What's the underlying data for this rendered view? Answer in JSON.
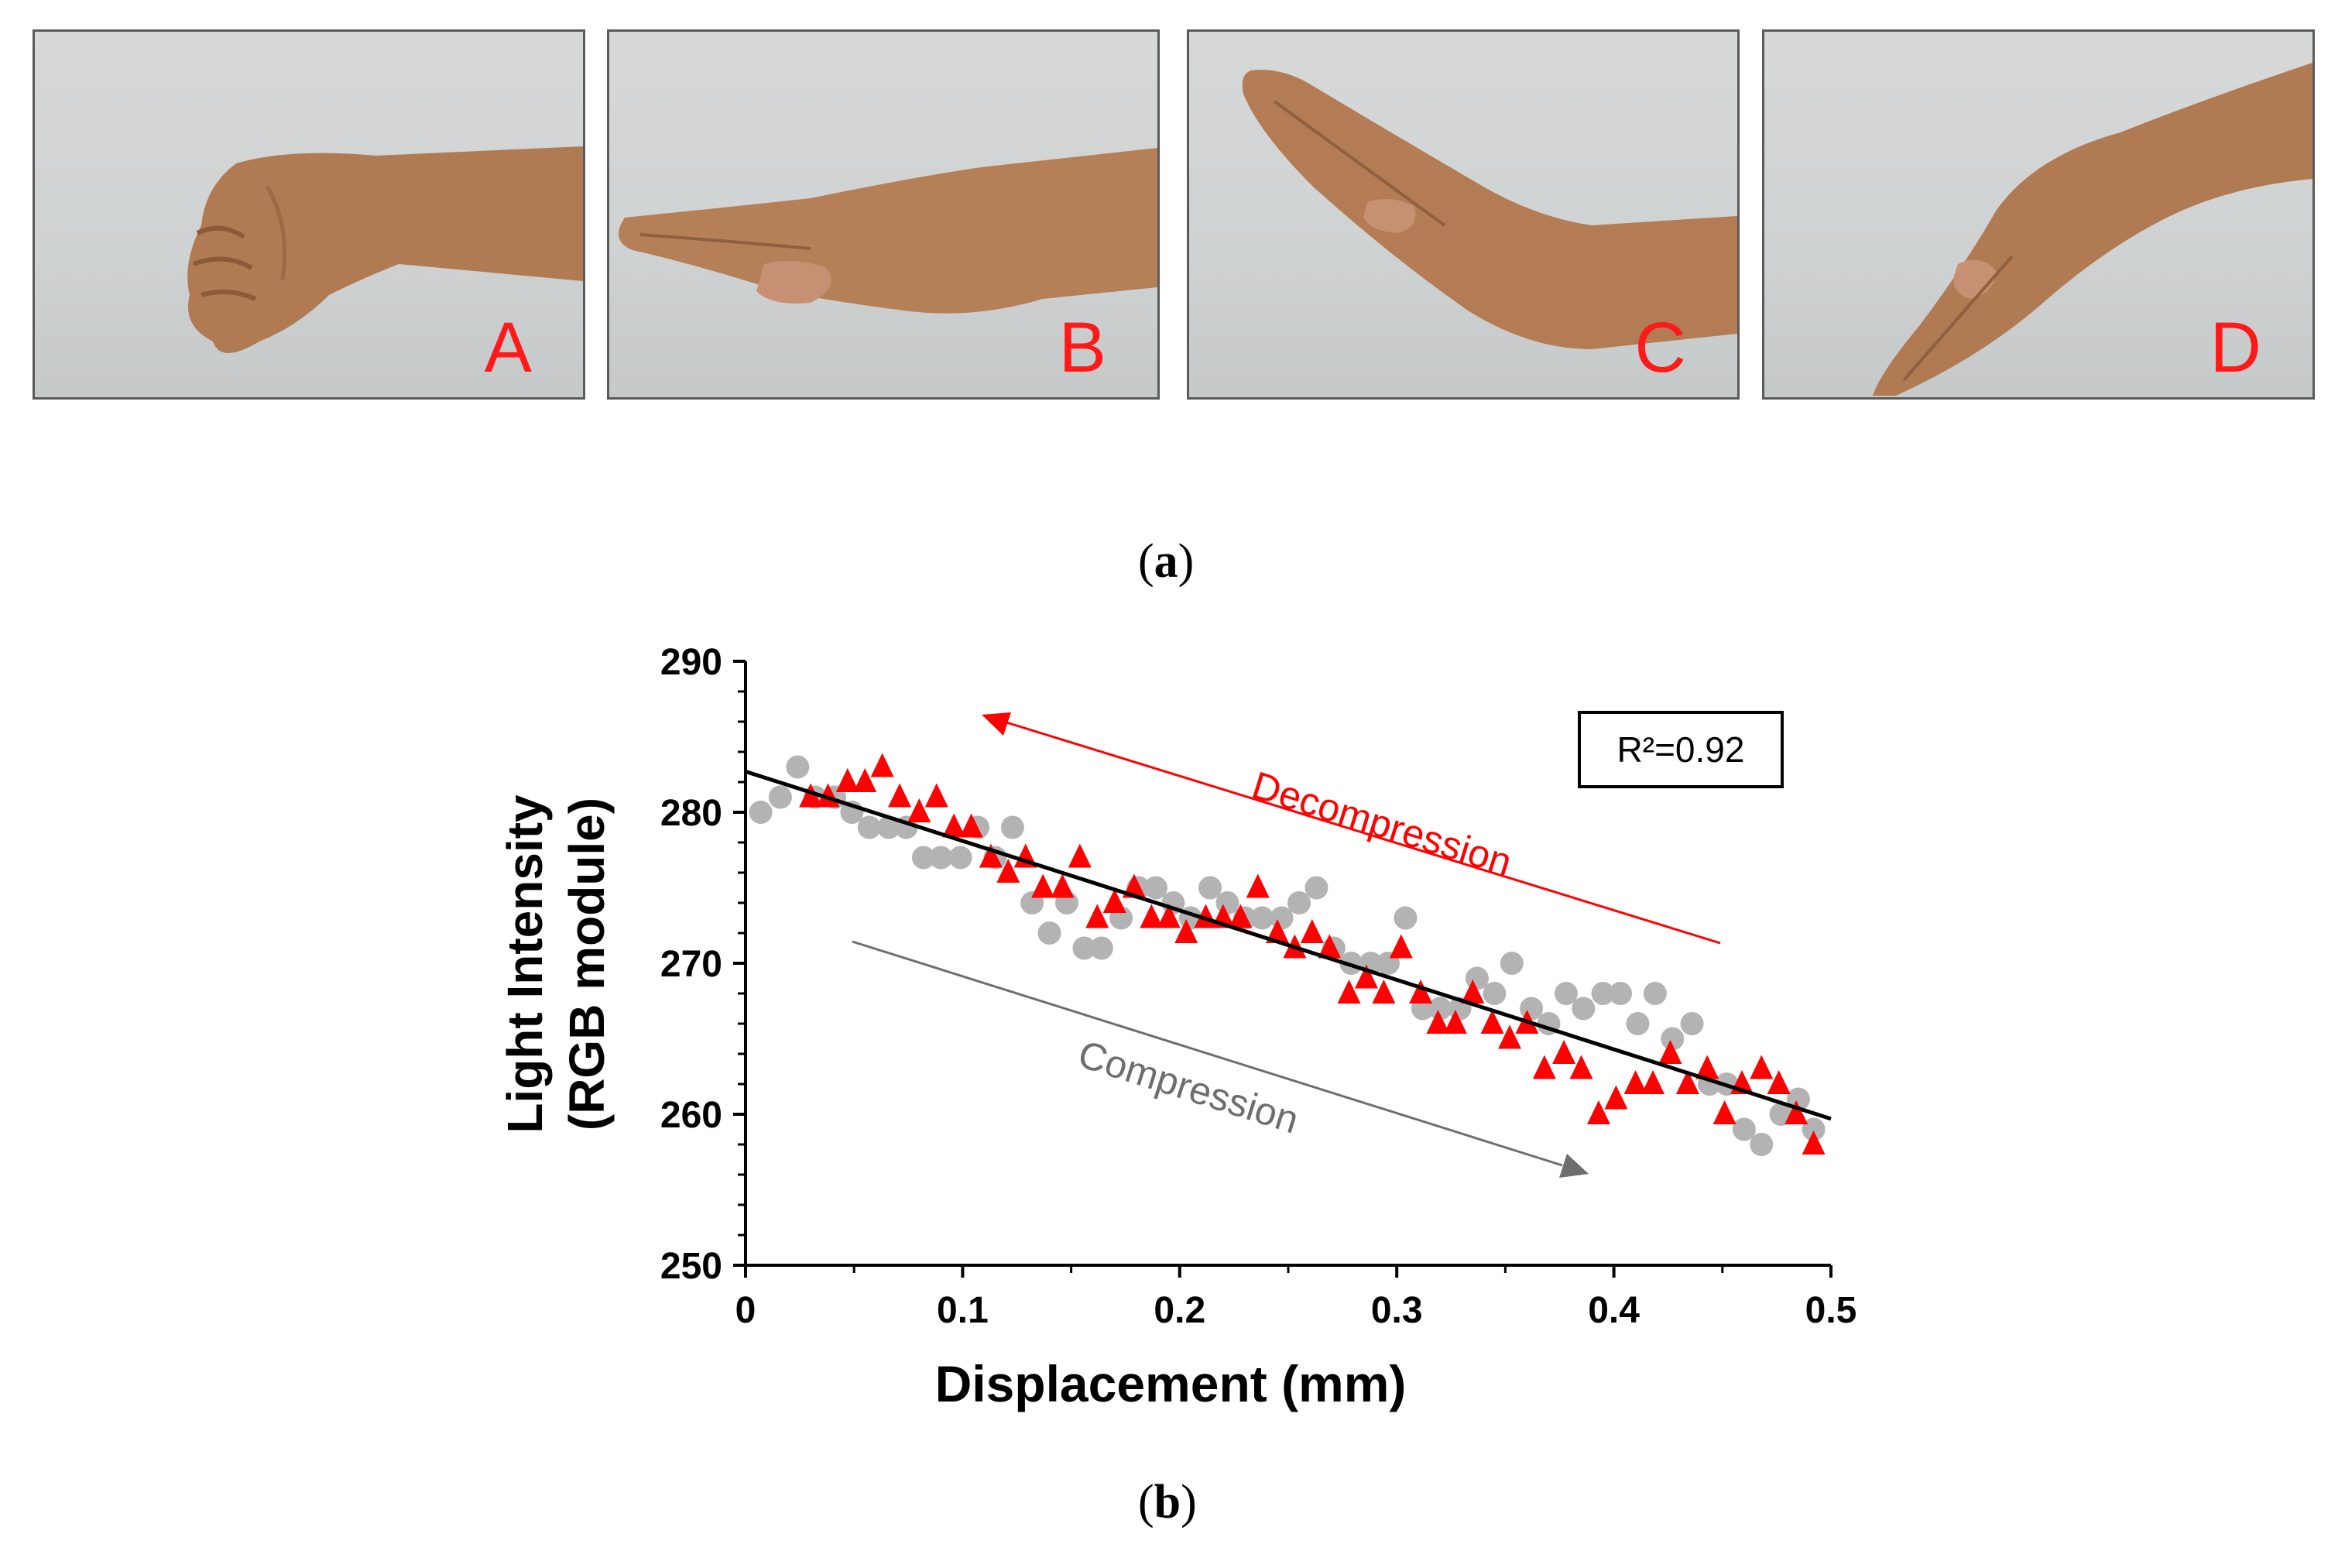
{
  "panel_a": {
    "photos": [
      {
        "label": "A",
        "pose": "fist"
      },
      {
        "label": "B",
        "pose": "flat-hand"
      },
      {
        "label": "C",
        "pose": "hand-extension"
      },
      {
        "label": "D",
        "pose": "hand-flexion"
      }
    ],
    "caption_open": "(",
    "caption_letter": "a",
    "caption_close": ")"
  },
  "panel_b": {
    "caption_open": "(",
    "caption_letter": "b",
    "caption_close": ")"
  },
  "colors": {
    "compression": "#b3b3b3",
    "decompression": "#ff0000",
    "trendline": "#000000",
    "photo_label": "#ff1a1a"
  },
  "chart_data": {
    "type": "scatter",
    "xlabel": "Displacement (mm)",
    "ylabel_line1": "Light Intensity",
    "ylabel_line2": "(RGB module)",
    "xlim": [
      0,
      0.5
    ],
    "ylim": [
      250,
      290
    ],
    "xticks": [
      0,
      0.1,
      0.2,
      0.3,
      0.4,
      0.5
    ],
    "xtick_labels": [
      "0",
      "0.1",
      "0.2",
      "0.3",
      "0.4",
      "0.5"
    ],
    "yticks": [
      250,
      260,
      270,
      280,
      290
    ],
    "ytick_labels": [
      "250",
      "260",
      "270",
      "280",
      "290"
    ],
    "legend": "none",
    "annotation_r2": "R²=0.92",
    "arrow_decompression_label": "Decompression",
    "arrow_compression_label": "Compression",
    "trendline": {
      "x": [
        0,
        0.5
      ],
      "y": [
        282.7,
        259.7
      ]
    },
    "series": [
      {
        "name": "Compression",
        "marker": "circle",
        "x": [
          0.007,
          0.016,
          0.024,
          0.032,
          0.041,
          0.049,
          0.057,
          0.066,
          0.074,
          0.082,
          0.09,
          0.099,
          0.107,
          0.115,
          0.123,
          0.132,
          0.14,
          0.148,
          0.156,
          0.164,
          0.173,
          0.181,
          0.189,
          0.197,
          0.205,
          0.214,
          0.222,
          0.23,
          0.238,
          0.247,
          0.255,
          0.263,
          0.271,
          0.279,
          0.288,
          0.296,
          0.304,
          0.312,
          0.32,
          0.329,
          0.337,
          0.345,
          0.353,
          0.362,
          0.37,
          0.378,
          0.386,
          0.395,
          0.403,
          0.411,
          0.419,
          0.427,
          0.436,
          0.444,
          0.452,
          0.46,
          0.468,
          0.477,
          0.485,
          0.492
        ],
        "values": [
          280,
          281,
          283,
          281,
          281,
          280,
          279,
          279,
          279,
          277,
          277,
          277,
          279,
          277,
          279,
          274,
          272,
          274,
          271,
          271,
          273,
          275,
          275,
          274,
          273,
          275,
          274,
          273,
          273,
          273,
          274,
          275,
          271,
          270,
          270,
          270,
          273,
          267,
          267,
          267,
          269,
          268,
          270,
          267,
          266,
          268,
          267,
          268,
          268,
          266,
          268,
          265,
          266,
          262,
          262,
          259,
          258,
          260,
          261,
          259
        ]
      },
      {
        "name": "Decompression",
        "marker": "triangle",
        "x": [
          0.492,
          0.484,
          0.476,
          0.468,
          0.459,
          0.451,
          0.443,
          0.434,
          0.426,
          0.418,
          0.41,
          0.401,
          0.393,
          0.385,
          0.377,
          0.368,
          0.36,
          0.352,
          0.344,
          0.335,
          0.327,
          0.319,
          0.311,
          0.302,
          0.294,
          0.286,
          0.278,
          0.269,
          0.261,
          0.253,
          0.245,
          0.236,
          0.228,
          0.22,
          0.212,
          0.203,
          0.195,
          0.187,
          0.179,
          0.17,
          0.162,
          0.154,
          0.146,
          0.137,
          0.129,
          0.121,
          0.113,
          0.104,
          0.096,
          0.088,
          0.08,
          0.071,
          0.063,
          0.055,
          0.047,
          0.038,
          0.03
        ],
        "values": [
          258,
          260,
          262,
          263,
          262,
          260,
          263,
          262,
          264,
          262,
          262,
          261,
          260,
          263,
          264,
          263,
          266,
          265,
          266,
          268,
          266,
          266,
          268,
          271,
          268,
          269,
          268,
          271,
          272,
          271,
          272,
          275,
          273,
          273,
          273,
          272,
          273,
          273,
          275,
          274,
          273,
          277,
          275,
          275,
          277,
          276,
          277,
          279,
          279,
          281,
          280,
          281,
          283,
          282,
          282,
          281,
          281
        ]
      }
    ]
  }
}
